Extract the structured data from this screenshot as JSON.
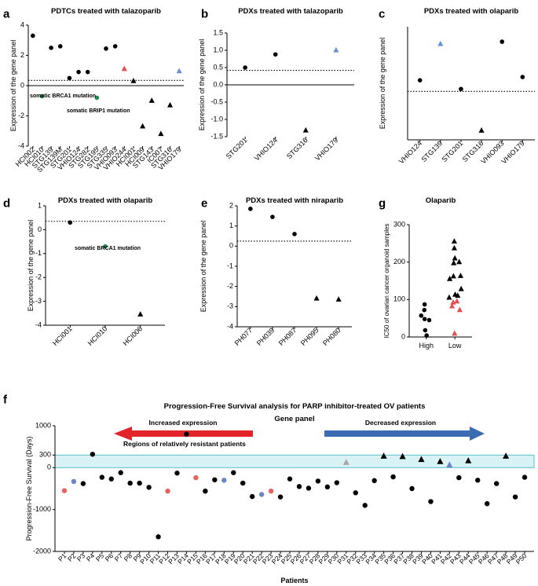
{
  "chart_data": [
    {
      "id": "a",
      "type": "scatter",
      "panel_label": "a",
      "title": "PDTCs treated with talazoparib",
      "ylabel": "Expression of the gene panel",
      "ylim": [
        -4,
        4
      ],
      "yticks": [
        -4,
        -2,
        0,
        2,
        4
      ],
      "threshold": 0.35,
      "categories": [
        "HCI002",
        "HCI010",
        "STG139",
        "STG139M",
        "STG201",
        "VHIO124",
        "STG282",
        "STG195",
        "STG335",
        "VHIO093",
        "VHIO244",
        "HCI001",
        "HCI009",
        "STG143",
        "IC007",
        "STG316",
        "VHIO179"
      ],
      "points": [
        {
          "x": "HCI002",
          "y": 3.3,
          "shape": "circle",
          "color": "#000000"
        },
        {
          "x": "HCI010",
          "y": -0.7,
          "shape": "circle",
          "color": "#1e8a4c"
        },
        {
          "x": "STG139",
          "y": 2.5,
          "shape": "circle",
          "color": "#000000"
        },
        {
          "x": "STG139M",
          "y": 2.6,
          "shape": "circle",
          "color": "#000000"
        },
        {
          "x": "STG201",
          "y": 0.5,
          "shape": "circle",
          "color": "#000000"
        },
        {
          "x": "VHIO124",
          "y": 0.9,
          "shape": "circle",
          "color": "#000000"
        },
        {
          "x": "STG282",
          "y": 0.9,
          "shape": "circle",
          "color": "#000000"
        },
        {
          "x": "STG195",
          "y": -0.8,
          "shape": "circle",
          "color": "#1e8a4c"
        },
        {
          "x": "STG335",
          "y": 2.45,
          "shape": "circle",
          "color": "#000000"
        },
        {
          "x": "VHIO093",
          "y": 2.6,
          "shape": "circle",
          "color": "#000000"
        },
        {
          "x": "VHIO244",
          "y": 1.1,
          "shape": "triangle",
          "color": "#e84c4c"
        },
        {
          "x": "HCI001",
          "y": 0.3,
          "shape": "triangle",
          "color": "#000000"
        },
        {
          "x": "HCI009",
          "y": -2.7,
          "shape": "triangle",
          "color": "#000000"
        },
        {
          "x": "STG143",
          "y": -1.0,
          "shape": "triangle",
          "color": "#000000"
        },
        {
          "x": "IC007",
          "y": -3.2,
          "shape": "triangle",
          "color": "#000000"
        },
        {
          "x": "STG316",
          "y": -1.3,
          "shape": "triangle",
          "color": "#000000"
        },
        {
          "x": "VHIO179",
          "y": 0.95,
          "shape": "triangle",
          "color": "#6a8fd0"
        }
      ],
      "annotations": [
        "somatic BRCA1 mutation",
        "somatic BRIP1 mutation"
      ]
    },
    {
      "id": "b",
      "type": "scatter",
      "panel_label": "b",
      "title": "PDXs treated with talazoparib",
      "ylabel": "Expression of the gene panel",
      "ylim": [
        -1.5,
        1.5
      ],
      "yticks": [
        -1.5,
        -1.0,
        -0.5,
        0.0,
        0.5,
        1.0,
        1.5
      ],
      "threshold": 0.42,
      "categories": [
        "STG201",
        "VHIO124",
        "STG316",
        "VHIO179"
      ],
      "points": [
        {
          "x": "STG201",
          "y": 0.5,
          "shape": "circle",
          "color": "#000000"
        },
        {
          "x": "VHIO124",
          "y": 0.88,
          "shape": "circle",
          "color": "#000000"
        },
        {
          "x": "STG316",
          "y": -1.32,
          "shape": "triangle",
          "color": "#000000"
        },
        {
          "x": "VHIO179",
          "y": 1.0,
          "shape": "triangle",
          "color": "#6a8fd0"
        }
      ]
    },
    {
      "id": "c",
      "type": "scatter",
      "panel_label": "c",
      "title": "PDXs treated with olaparib",
      "ylabel": "Expression of the gene panel",
      "ylim": [
        -1.7,
        3.2
      ],
      "yticks": [],
      "threshold": 0.4,
      "categories": [
        "VHIO124",
        "STG139",
        "STG201",
        "STG316",
        "VHIO093",
        "VHIO179"
      ],
      "points": [
        {
          "x": "VHIO124",
          "y": 0.88,
          "shape": "circle",
          "color": "#000000"
        },
        {
          "x": "STG139",
          "y": 2.45,
          "shape": "triangle",
          "color": "#6a8fd0"
        },
        {
          "x": "STG201",
          "y": 0.5,
          "shape": "circle",
          "color": "#000000"
        },
        {
          "x": "STG316",
          "y": -1.3,
          "shape": "triangle",
          "color": "#000000"
        },
        {
          "x": "VHIO093",
          "y": 2.55,
          "shape": "circle",
          "color": "#000000"
        },
        {
          "x": "VHIO179",
          "y": 1.02,
          "shape": "circle",
          "color": "#000000"
        }
      ]
    },
    {
      "id": "d",
      "type": "scatter",
      "panel_label": "d",
      "title": "PDXs treated with olaparib",
      "ylabel": "Expression of the gene panel",
      "ylim": [
        -4,
        1
      ],
      "yticks": [
        -4,
        -3,
        -2,
        -1,
        0,
        1
      ],
      "threshold": 0.35,
      "categories": [
        "HCI001",
        "HCI010",
        "HCI006"
      ],
      "points": [
        {
          "x": "HCI001",
          "y": 0.3,
          "shape": "circle",
          "color": "#000000"
        },
        {
          "x": "HCI010",
          "y": -0.7,
          "shape": "circle",
          "color": "#1e8a4c"
        },
        {
          "x": "HCI006",
          "y": -3.55,
          "shape": "triangle",
          "color": "#000000"
        }
      ],
      "annotations": [
        "somatic BRCA1 mutation"
      ]
    },
    {
      "id": "e",
      "type": "scatter",
      "panel_label": "e",
      "title": "PDXs treated with niraparib",
      "ylabel": "Expression of the gene panel",
      "ylim": [
        -4,
        2
      ],
      "yticks": [
        -4,
        -3,
        -2,
        -1,
        0,
        1,
        2
      ],
      "threshold": 0.25,
      "categories": [
        "PH077",
        "PH039",
        "PH087",
        "PH095",
        "PH080"
      ],
      "points": [
        {
          "x": "PH077",
          "y": 1.85,
          "shape": "circle",
          "color": "#000000"
        },
        {
          "x": "PH039",
          "y": 1.45,
          "shape": "circle",
          "color": "#000000"
        },
        {
          "x": "PH087",
          "y": 0.6,
          "shape": "circle",
          "color": "#000000"
        },
        {
          "x": "PH095",
          "y": -2.6,
          "shape": "triangle",
          "color": "#000000"
        },
        {
          "x": "PH080",
          "y": -2.65,
          "shape": "triangle",
          "color": "#000000"
        }
      ]
    },
    {
      "id": "g",
      "type": "scatter",
      "panel_label": "g",
      "title": "Olaparib",
      "ylabel": "IC50 of ovarian cancer organoid samples",
      "ylim": [
        0,
        300
      ],
      "yticks": [
        0,
        100,
        200,
        300
      ],
      "categories": [
        "High",
        "Low"
      ],
      "points": [
        {
          "x": "High",
          "off": -0.18,
          "y": 57,
          "shape": "circle",
          "color": "#000000"
        },
        {
          "x": "High",
          "off": -0.06,
          "y": 87,
          "shape": "circle",
          "color": "#000000"
        },
        {
          "x": "High",
          "off": -0.07,
          "y": 72,
          "shape": "circle",
          "color": "#000000"
        },
        {
          "x": "High",
          "off": -0.06,
          "y": 48,
          "shape": "circle",
          "color": "#000000"
        },
        {
          "x": "High",
          "off": 0.1,
          "y": 45,
          "shape": "circle",
          "color": "#000000"
        },
        {
          "x": "High",
          "off": -0.04,
          "y": 18,
          "shape": "circle",
          "color": "#000000"
        },
        {
          "x": "High",
          "off": 0.01,
          "y": 4,
          "shape": "circle",
          "color": "#000000"
        },
        {
          "x": "Low",
          "off": -0.2,
          "y": 105,
          "shape": "triangle",
          "color": "#000000"
        },
        {
          "x": "Low",
          "off": -0.18,
          "y": 155,
          "shape": "triangle",
          "color": "#000000"
        },
        {
          "x": "Low",
          "off": -0.05,
          "y": 162,
          "shape": "triangle",
          "color": "#000000"
        },
        {
          "x": "Low",
          "off": -0.02,
          "y": 255,
          "shape": "triangle",
          "color": "#000000"
        },
        {
          "x": "Low",
          "off": -0.02,
          "y": 237,
          "shape": "triangle",
          "color": "#000000"
        },
        {
          "x": "Low",
          "off": 0.0,
          "y": 210,
          "shape": "triangle",
          "color": "#000000"
        },
        {
          "x": "Low",
          "off": -0.04,
          "y": 197,
          "shape": "triangle",
          "color": "#000000"
        },
        {
          "x": "Low",
          "off": 0.15,
          "y": 200,
          "shape": "triangle",
          "color": "#000000"
        },
        {
          "x": "Low",
          "off": 0.2,
          "y": 163,
          "shape": "triangle",
          "color": "#000000"
        },
        {
          "x": "Low",
          "off": 0.22,
          "y": 128,
          "shape": "triangle",
          "color": "#000000"
        },
        {
          "x": "Low",
          "off": 0.01,
          "y": 113,
          "shape": "triangle",
          "color": "#000000"
        },
        {
          "x": "Low",
          "off": 0.1,
          "y": 110,
          "shape": "triangle",
          "color": "#000000"
        },
        {
          "x": "Low",
          "off": -0.06,
          "y": 92,
          "shape": "triangle",
          "color": "#e84c4c"
        },
        {
          "x": "Low",
          "off": 0.07,
          "y": 95,
          "shape": "triangle",
          "color": "#e84c4c"
        },
        {
          "x": "Low",
          "off": -0.1,
          "y": 82,
          "shape": "triangle",
          "color": "#e84c4c"
        },
        {
          "x": "Low",
          "off": 0.17,
          "y": 72,
          "shape": "triangle",
          "color": "#e84c4c"
        },
        {
          "x": "Low",
          "off": -0.01,
          "y": 9,
          "shape": "triangle",
          "color": "#e84c4c"
        }
      ]
    },
    {
      "id": "f",
      "type": "scatter",
      "panel_label": "f",
      "title": "Progression-Free Survival analysis for PARP inhibitor-treated OV patients",
      "subtitle": "Gene panel",
      "xlabel": "Patients",
      "ylabel": "Progression-Free Survival (Days)",
      "ylim": [
        -2000,
        1000
      ],
      "yticks": [
        -2000,
        -1000,
        0,
        300,
        1000
      ],
      "band": [
        0,
        300
      ],
      "band_label": "Regions of relatively resistant patients",
      "arrow_left_label": "Increased expression",
      "arrow_right_label": "Decreased expression",
      "categories": [
        "P1",
        "P2",
        "P3",
        "P4",
        "P5",
        "P6",
        "P7",
        "P8",
        "P9",
        "P10",
        "P11",
        "P12",
        "P13",
        "P14",
        "P15",
        "P16",
        "P17",
        "P18",
        "P19",
        "P20",
        "P21",
        "P22",
        "P23",
        "P24",
        "P25",
        "P26",
        "P27",
        "P28",
        "P29",
        "P30",
        "P31",
        "P32",
        "P33",
        "P34",
        "P35",
        "P36",
        "P37",
        "P38",
        "P39",
        "P40",
        "P41",
        "P42",
        "P43",
        "P44",
        "P45",
        "P46",
        "P47",
        "P48",
        "P49",
        "P50"
      ],
      "points": [
        {
          "x": "P1",
          "y": -550,
          "shape": "circle",
          "color": "#e8615a"
        },
        {
          "x": "P2",
          "y": -330,
          "shape": "circle",
          "color": "#6a86c4"
        },
        {
          "x": "P3",
          "y": -380,
          "shape": "circle",
          "color": "#000000"
        },
        {
          "x": "P4",
          "y": 320,
          "shape": "circle",
          "color": "#000000"
        },
        {
          "x": "P5",
          "y": -230,
          "shape": "circle",
          "color": "#000000"
        },
        {
          "x": "P6",
          "y": -270,
          "shape": "circle",
          "color": "#000000"
        },
        {
          "x": "P7",
          "y": -120,
          "shape": "circle",
          "color": "#000000"
        },
        {
          "x": "P8",
          "y": -370,
          "shape": "circle",
          "color": "#000000"
        },
        {
          "x": "P9",
          "y": -370,
          "shape": "circle",
          "color": "#000000"
        },
        {
          "x": "P10",
          "y": -470,
          "shape": "circle",
          "color": "#000000"
        },
        {
          "x": "P11",
          "y": -1650,
          "shape": "circle",
          "color": "#000000"
        },
        {
          "x": "P12",
          "y": -560,
          "shape": "circle",
          "color": "#e8615a"
        },
        {
          "x": "P13",
          "y": -130,
          "shape": "circle",
          "color": "#000000"
        },
        {
          "x": "P14",
          "y": 800,
          "shape": "circle",
          "color": "#000000"
        },
        {
          "x": "P15",
          "y": -240,
          "shape": "circle",
          "color": "#e8615a"
        },
        {
          "x": "P16",
          "y": -560,
          "shape": "circle",
          "color": "#000000"
        },
        {
          "x": "P17",
          "y": -290,
          "shape": "circle",
          "color": "#000000"
        },
        {
          "x": "P18",
          "y": -300,
          "shape": "circle",
          "color": "#6a86c4"
        },
        {
          "x": "P19",
          "y": -120,
          "shape": "circle",
          "color": "#000000"
        },
        {
          "x": "P20",
          "y": -370,
          "shape": "circle",
          "color": "#000000"
        },
        {
          "x": "P21",
          "y": -690,
          "shape": "circle",
          "color": "#000000"
        },
        {
          "x": "P22",
          "y": -640,
          "shape": "circle",
          "color": "#6a86c4"
        },
        {
          "x": "P23",
          "y": -560,
          "shape": "circle",
          "color": "#e8615a"
        },
        {
          "x": "P24",
          "y": -700,
          "shape": "circle",
          "color": "#000000"
        },
        {
          "x": "P25",
          "y": -270,
          "shape": "circle",
          "color": "#000000"
        },
        {
          "x": "P26",
          "y": -450,
          "shape": "circle",
          "color": "#000000"
        },
        {
          "x": "P27",
          "y": -490,
          "shape": "circle",
          "color": "#000000"
        },
        {
          "x": "P28",
          "y": -320,
          "shape": "circle",
          "color": "#000000"
        },
        {
          "x": "P29",
          "y": -460,
          "shape": "circle",
          "color": "#000000"
        },
        {
          "x": "P30",
          "y": -360,
          "shape": "circle",
          "color": "#000000"
        },
        {
          "x": "P31",
          "y": 120,
          "shape": "triangle",
          "color": "#a8a8a8"
        },
        {
          "x": "P32",
          "y": -600,
          "shape": "circle",
          "color": "#000000"
        },
        {
          "x": "P33",
          "y": -900,
          "shape": "circle",
          "color": "#000000"
        },
        {
          "x": "P34",
          "y": -310,
          "shape": "circle",
          "color": "#000000"
        },
        {
          "x": "P35",
          "y": 270,
          "shape": "triangle",
          "color": "#000000"
        },
        {
          "x": "P36",
          "y": -220,
          "shape": "circle",
          "color": "#000000"
        },
        {
          "x": "P37",
          "y": 260,
          "shape": "triangle",
          "color": "#000000"
        },
        {
          "x": "P38",
          "y": -500,
          "shape": "circle",
          "color": "#000000"
        },
        {
          "x": "P39",
          "y": 190,
          "shape": "triangle",
          "color": "#000000"
        },
        {
          "x": "P40",
          "y": -810,
          "shape": "circle",
          "color": "#000000"
        },
        {
          "x": "P41",
          "y": 140,
          "shape": "triangle",
          "color": "#000000"
        },
        {
          "x": "P42",
          "y": 60,
          "shape": "triangle",
          "color": "#6a86c4"
        },
        {
          "x": "P43",
          "y": -240,
          "shape": "circle",
          "color": "#000000"
        },
        {
          "x": "P44",
          "y": 160,
          "shape": "triangle",
          "color": "#000000"
        },
        {
          "x": "P45",
          "y": -300,
          "shape": "circle",
          "color": "#000000"
        },
        {
          "x": "P46",
          "y": -860,
          "shape": "circle",
          "color": "#000000"
        },
        {
          "x": "P47",
          "y": -380,
          "shape": "circle",
          "color": "#000000"
        },
        {
          "x": "P48",
          "y": 270,
          "shape": "triangle",
          "color": "#000000"
        },
        {
          "x": "P49",
          "y": -700,
          "shape": "circle",
          "color": "#000000"
        },
        {
          "x": "P50",
          "y": -230,
          "shape": "circle",
          "color": "#000000"
        }
      ]
    }
  ],
  "colors": {
    "arrow_left": "#e0242a",
    "arrow_right": "#3a6bb3",
    "band_fill": "#d8f2f6",
    "band_stroke": "#5bbfc9"
  }
}
